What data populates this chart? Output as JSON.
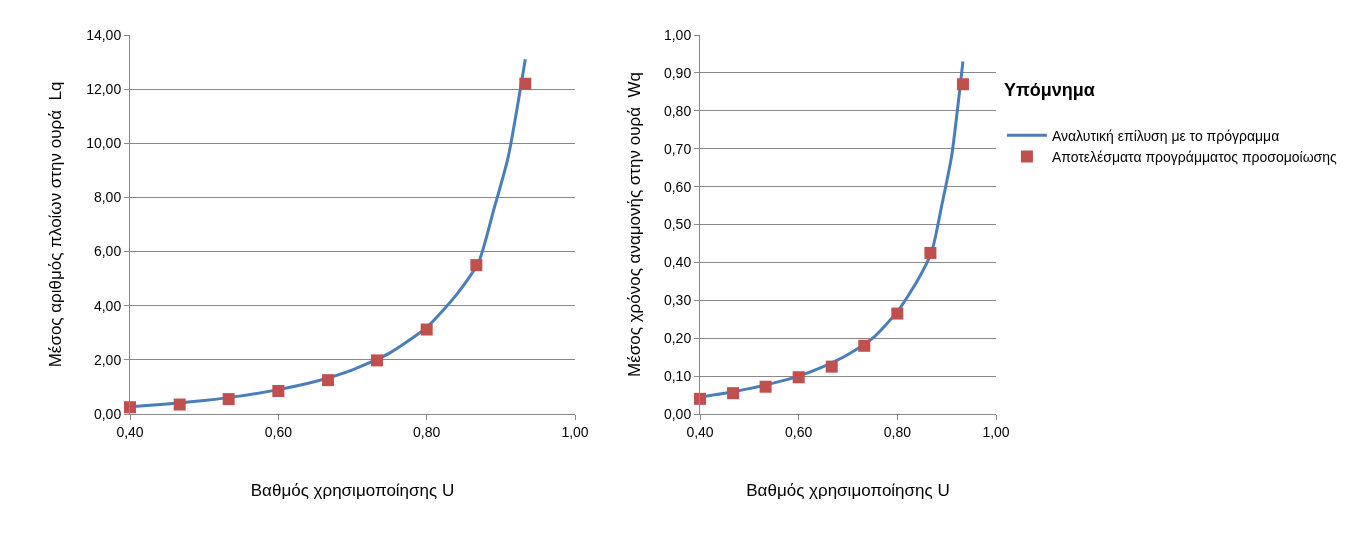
{
  "chart_data": [
    {
      "type": "line",
      "xlabel": "Βαθμός χρησιμοποίησης U",
      "ylabel": "Μέσος αριθμός πλοίων στην ουρά  Lq",
      "xlim": [
        0.4,
        1.0
      ],
      "xticks": [
        {
          "value": 0.4,
          "label": "0,40"
        },
        {
          "value": 0.6,
          "label": "0,60"
        },
        {
          "value": 0.8,
          "label": "0,80"
        },
        {
          "value": 1.0,
          "label": "1,00"
        }
      ],
      "ylim": [
        0,
        14
      ],
      "yticks": [
        {
          "value": 0,
          "label": "0,00"
        },
        {
          "value": 2,
          "label": "2,00"
        },
        {
          "value": 4,
          "label": "4,00"
        },
        {
          "value": 6,
          "label": "6,00"
        },
        {
          "value": 8,
          "label": "8,00"
        },
        {
          "value": 10,
          "label": "10,00"
        },
        {
          "value": 12,
          "label": "12,00"
        },
        {
          "value": 14,
          "label": "14,00"
        }
      ],
      "grid": "y",
      "legend": false,
      "series": [
        {
          "color": "#4a7ebb",
          "marker": "none",
          "x": [
            0.4,
            0.45,
            0.5,
            0.55,
            0.6,
            0.65,
            0.7,
            0.75,
            0.8,
            0.84,
            0.87,
            0.89,
            0.91,
            0.933
          ],
          "values": [
            0.27,
            0.37,
            0.5,
            0.67,
            0.9,
            1.2,
            1.63,
            2.25,
            3.2,
            4.4,
            5.6,
            7.5,
            9.5,
            13.1
          ]
        },
        {
          "type": "scatter",
          "color": "#c0504d",
          "marker": "square",
          "x": [
            0.4,
            0.467,
            0.533,
            0.6,
            0.667,
            0.733,
            0.8,
            0.867,
            0.933
          ],
          "values": [
            0.25,
            0.35,
            0.55,
            0.85,
            1.25,
            1.98,
            3.12,
            5.5,
            12.2
          ]
        }
      ]
    },
    {
      "type": "line",
      "xlabel": "Βαθμός χρησιμοποίησης U",
      "ylabel": "Μέσος χρόνος αναμονής στην ουρά  Wq",
      "legend_title": "Υπόμνημα",
      "xlim": [
        0.4,
        1.0
      ],
      "xticks": [
        {
          "value": 0.4,
          "label": "0,40"
        },
        {
          "value": 0.6,
          "label": "0,60"
        },
        {
          "value": 0.8,
          "label": "0,80"
        },
        {
          "value": 1.0,
          "label": "1,00"
        }
      ],
      "ylim": [
        0,
        1
      ],
      "yticks": [
        {
          "value": 0,
          "label": "0,00"
        },
        {
          "value": 0.1,
          "label": "0,10"
        },
        {
          "value": 0.2,
          "label": "0,20"
        },
        {
          "value": 0.3,
          "label": "0,30"
        },
        {
          "value": 0.4,
          "label": "0,40"
        },
        {
          "value": 0.5,
          "label": "0,50"
        },
        {
          "value": 0.6,
          "label": "0,60"
        },
        {
          "value": 0.7,
          "label": "0,70"
        },
        {
          "value": 0.8,
          "label": "0,80"
        },
        {
          "value": 0.9,
          "label": "0,90"
        },
        {
          "value": 1.0,
          "label": "1,00"
        }
      ],
      "grid": "y",
      "legend": "right",
      "series": [
        {
          "name": "Αναλυτική επίλυση με το πρόγραμμα",
          "color": "#4a7ebb",
          "marker": "none",
          "x": [
            0.4,
            0.45,
            0.5,
            0.55,
            0.6,
            0.65,
            0.7,
            0.75,
            0.8,
            0.84,
            0.87,
            0.89,
            0.91,
            0.933
          ],
          "values": [
            0.045,
            0.055,
            0.067,
            0.082,
            0.1,
            0.125,
            0.157,
            0.2,
            0.27,
            0.35,
            0.43,
            0.55,
            0.68,
            0.93
          ]
        },
        {
          "type": "scatter",
          "name": "Αποτελέσματα προγράμματος προσομοίωσης",
          "color": "#c0504d",
          "marker": "square",
          "x": [
            0.4,
            0.467,
            0.533,
            0.6,
            0.667,
            0.733,
            0.8,
            0.867,
            0.933
          ],
          "values": [
            0.04,
            0.055,
            0.072,
            0.097,
            0.125,
            0.18,
            0.265,
            0.425,
            0.87
          ]
        }
      ]
    }
  ]
}
